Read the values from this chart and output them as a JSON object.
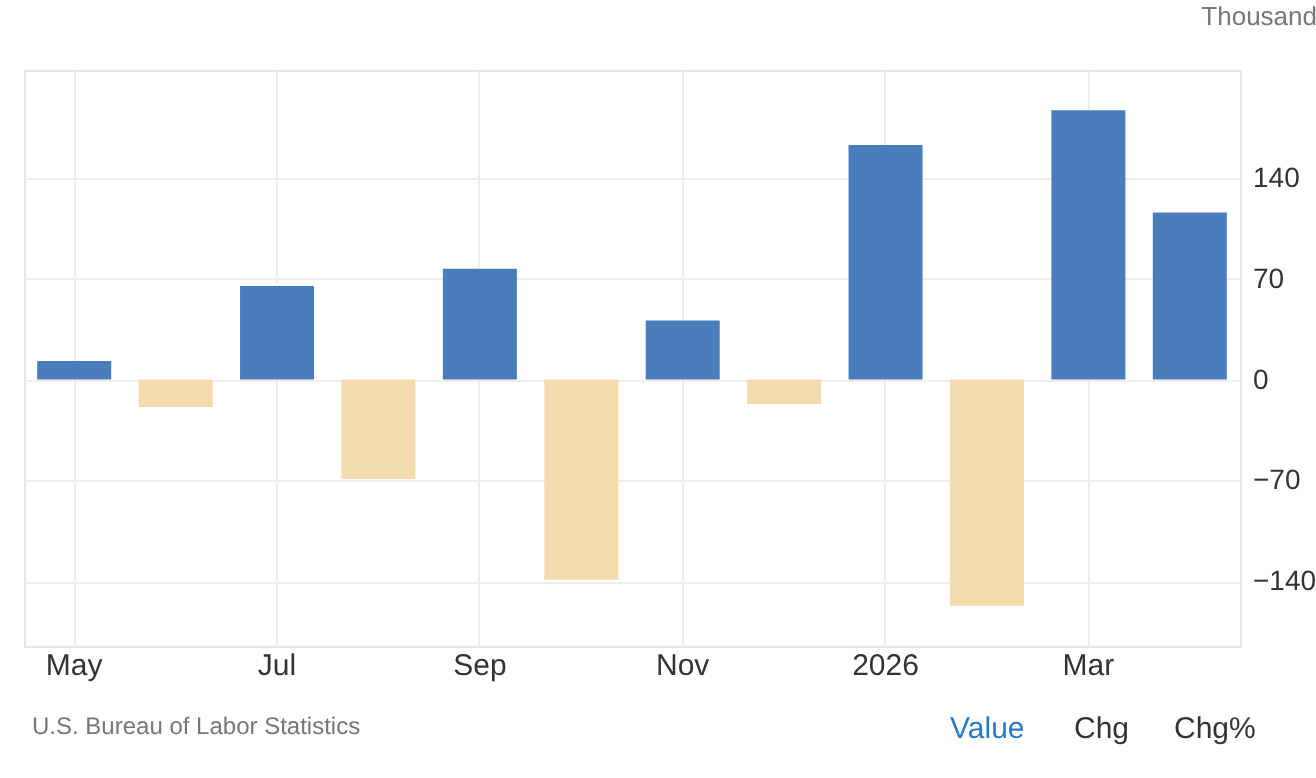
{
  "chart_data": {
    "type": "bar",
    "ylabel": "Thousand",
    "annotations": [
      "U.S. Bureau of Labor Statistics",
      "Value",
      "Chg",
      "Chg%"
    ],
    "categories": [
      "May",
      null,
      "Jul",
      null,
      "Sep",
      null,
      "Nov",
      null,
      "2026",
      null,
      "Mar",
      null
    ],
    "values": [
      13,
      -19,
      65,
      -69,
      77,
      -139,
      41,
      -17,
      163,
      -157,
      187,
      116
    ],
    "colors": [
      "#4a7ebb",
      "#f3dbae",
      "#4a7ebb",
      "#f3dbae",
      "#4a7ebb",
      "#f3dbae",
      "#4a7ebb",
      "#f3dbae",
      "#4a7ebb",
      "#f3dbae",
      "#4a7ebb",
      "#4a7ebb"
    ],
    "ylim": [
      -185,
      215
    ],
    "yticks": [
      -140,
      -70,
      0,
      70,
      140
    ],
    "grid": true
  }
}
